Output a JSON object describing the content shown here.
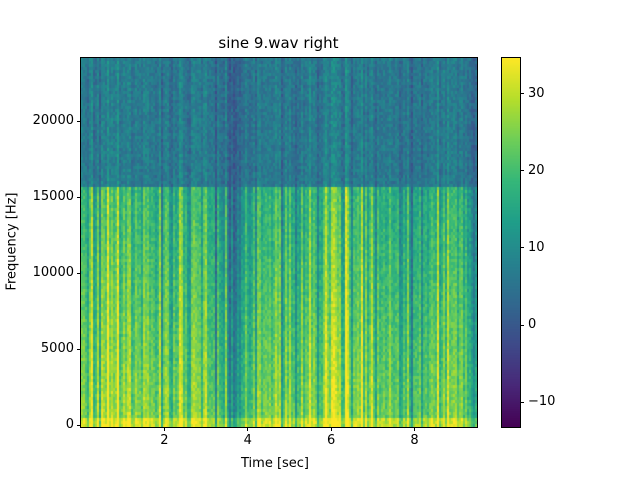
{
  "chart_data": {
    "type": "heatmap",
    "title": "sine 9.wav right",
    "xlabel": "Time [sec]",
    "ylabel": "Frequency [Hz]",
    "xlim": [
      0,
      9.5
    ],
    "ylim": [
      0,
      24000
    ],
    "x_ticks": [
      2,
      4,
      6,
      8
    ],
    "x_tick_labels": [
      "2",
      "4",
      "6",
      "8"
    ],
    "y_ticks": [
      0,
      5000,
      10000,
      15000,
      20000
    ],
    "y_tick_labels": [
      "0",
      "5000",
      "10000",
      "15000",
      "20000"
    ],
    "colormap": "viridis",
    "colorbar": {
      "range": [
        -13.2,
        34.6
      ],
      "ticks": [
        -10,
        0,
        10,
        20,
        30
      ],
      "tick_labels": [
        "−10",
        "0",
        "10",
        "20",
        "30"
      ]
    },
    "description_levels": {
      "below_16000_hz": "approx 15-30 dB",
      "above_16000_hz": "approx 3-12 dB",
      "quiet_interval_sec": [
        3.5,
        3.8
      ]
    }
  }
}
